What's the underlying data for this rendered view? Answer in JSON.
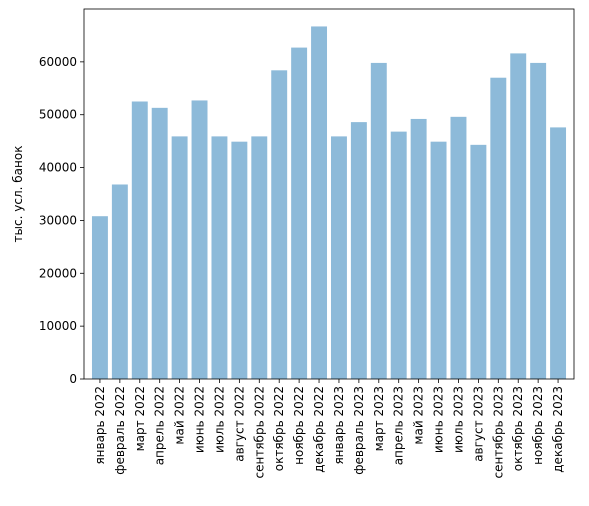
{
  "chart_data": {
    "type": "bar",
    "title": "",
    "xlabel": "",
    "ylabel": "тыс. усл. банок",
    "bar_color": "#8DBAD9",
    "grid": false,
    "ylim": [
      0,
      70000
    ],
    "yticks": [
      0,
      10000,
      20000,
      30000,
      40000,
      50000,
      60000
    ],
    "categories": [
      "январь 2022",
      "февраль 2022",
      "март 2022",
      "апрель 2022",
      "май 2022",
      "июнь 2022",
      "июль 2022",
      "август 2022",
      "сентябрь 2022",
      "октябрь 2022",
      "ноябрь 2022",
      "декабрь 2022",
      "январь 2023",
      "февраль 2023",
      "март 2023",
      "апрель 2023",
      "май 2023",
      "июнь 2023",
      "июль 2023",
      "август 2023",
      "сентябрь 2023",
      "октябрь 2023",
      "ноябрь 2023",
      "декабрь 2023"
    ],
    "values": [
      30800,
      36800,
      52500,
      51300,
      45900,
      52700,
      45900,
      44900,
      45900,
      58400,
      62700,
      66700,
      45900,
      48600,
      59800,
      46800,
      49200,
      44900,
      49600,
      44300,
      57000,
      61600,
      59800,
      47600
    ]
  }
}
